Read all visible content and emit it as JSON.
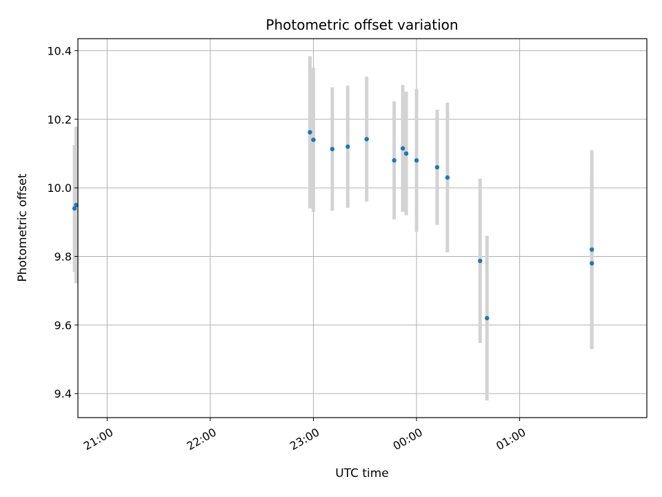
{
  "chart_data": {
    "type": "scatter",
    "title": "Photometric offset variation",
    "xlabel": "UTC time",
    "ylabel": "Photometric offset",
    "x_axis": {
      "kind": "time",
      "min": "20:43",
      "max": "02:14",
      "ticks": [
        "21:00",
        "22:00",
        "23:00",
        "00:00",
        "01:00"
      ]
    },
    "y_axis": {
      "min": 9.33,
      "max": 10.435,
      "ticks": [
        "9.4",
        "9.6",
        "9.8",
        "10.0",
        "10.2",
        "10.4"
      ]
    },
    "grid": true,
    "colors": {
      "point": "#1f77b4",
      "errorbar": "#d3d3d3",
      "grid": "#b0b0b0"
    },
    "points": [
      {
        "time": "20:41",
        "y": 9.94,
        "err": 0.185
      },
      {
        "time": "20:42",
        "y": 9.95,
        "err": 0.228
      },
      {
        "time": "22:58",
        "y": 10.162,
        "err": 0.222
      },
      {
        "time": "23:00",
        "y": 10.14,
        "err": 0.21
      },
      {
        "time": "23:11",
        "y": 10.113,
        "err": 0.18
      },
      {
        "time": "23:20",
        "y": 10.12,
        "err": 0.178
      },
      {
        "time": "23:31",
        "y": 10.142,
        "err": 0.182
      },
      {
        "time": "23:47",
        "y": 10.08,
        "err": 0.172
      },
      {
        "time": "23:52",
        "y": 10.115,
        "err": 0.185
      },
      {
        "time": "23:54",
        "y": 10.1,
        "err": 0.18
      },
      {
        "time": "00:00",
        "y": 10.08,
        "err": 0.208
      },
      {
        "time": "00:12",
        "y": 10.06,
        "err": 0.168
      },
      {
        "time": "00:18",
        "y": 10.03,
        "err": 0.218
      },
      {
        "time": "00:37",
        "y": 9.787,
        "err": 0.24
      },
      {
        "time": "00:41",
        "y": 9.62,
        "err": 0.24
      },
      {
        "time": "01:42",
        "y": 9.82,
        "err": 0.29
      },
      {
        "time": "01:42",
        "y": 9.78,
        "err": 0.25
      }
    ]
  }
}
